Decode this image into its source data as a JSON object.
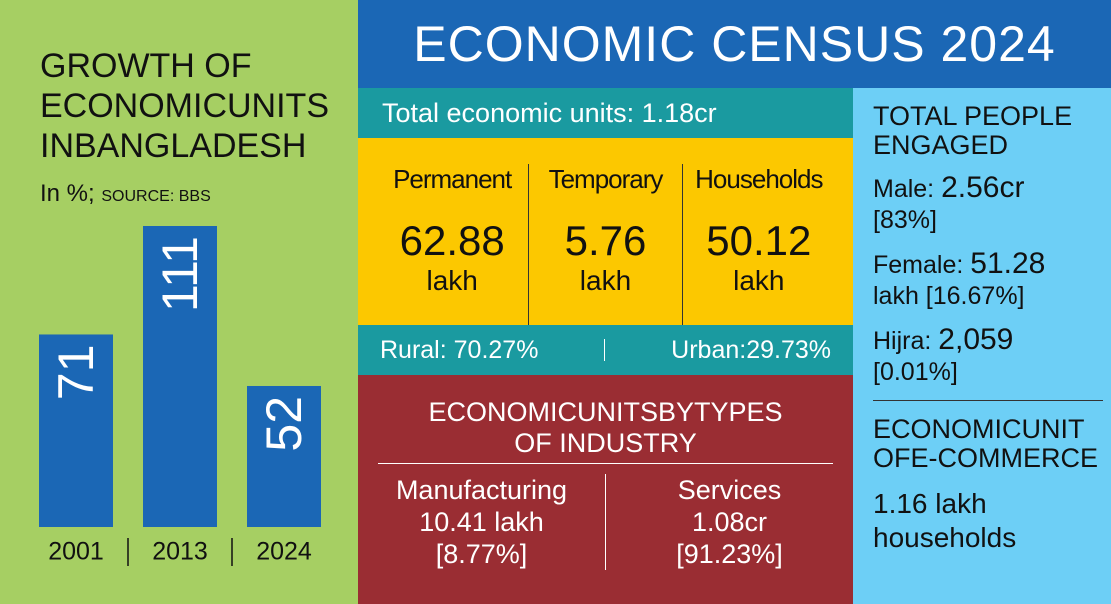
{
  "chart_data": {
    "type": "bar",
    "title": [
      "GROWTH OF",
      "ECONOMICUNITS",
      "INBANGLADESH"
    ],
    "subtitle": "In %;",
    "source": "SOURCE: BBS",
    "categories": [
      "2001",
      "2013",
      "2024"
    ],
    "values": [
      71,
      111,
      52
    ],
    "color": "#1b67b5"
  },
  "header": {
    "title": "ECONOMIC CENSUS 2024"
  },
  "total_units": "Total economic units: 1.18cr",
  "unit_types": [
    {
      "label": "Permanent",
      "value": "62.88",
      "unit": "lakh"
    },
    {
      "label": "Temporary",
      "value": "5.76",
      "unit": "lakh"
    },
    {
      "label": "Households",
      "value": "50.12",
      "unit": "lakh"
    }
  ],
  "location": {
    "rural": "Rural: 70.27%",
    "urban": "Urban:29.73%"
  },
  "industry": {
    "title": [
      "ECONOMICUNITSBYTYPES",
      "OF INDUSTRY"
    ],
    "items": [
      {
        "label": "Manufacturing",
        "value": "10.41 lakh",
        "share": "[8.77%]"
      },
      {
        "label": "Services",
        "value": "1.08cr",
        "share": "[91.23%]"
      }
    ]
  },
  "people": {
    "title": [
      "TOTAL PEOPLE",
      "ENGAGED"
    ],
    "entries": [
      {
        "label": "Male:",
        "value": "2.56cr",
        "note": "[83%]"
      },
      {
        "label": "Female:",
        "value": "51.28",
        "note": "lakh [16.67%]"
      },
      {
        "label": "Hijra:",
        "value": "2,059",
        "note": "[0.01%]"
      }
    ]
  },
  "ecommerce": {
    "title": [
      "ECONOMICUNIT",
      "OFE-COMMERCE"
    ],
    "value": "1.16 lakh",
    "unit": "households"
  }
}
